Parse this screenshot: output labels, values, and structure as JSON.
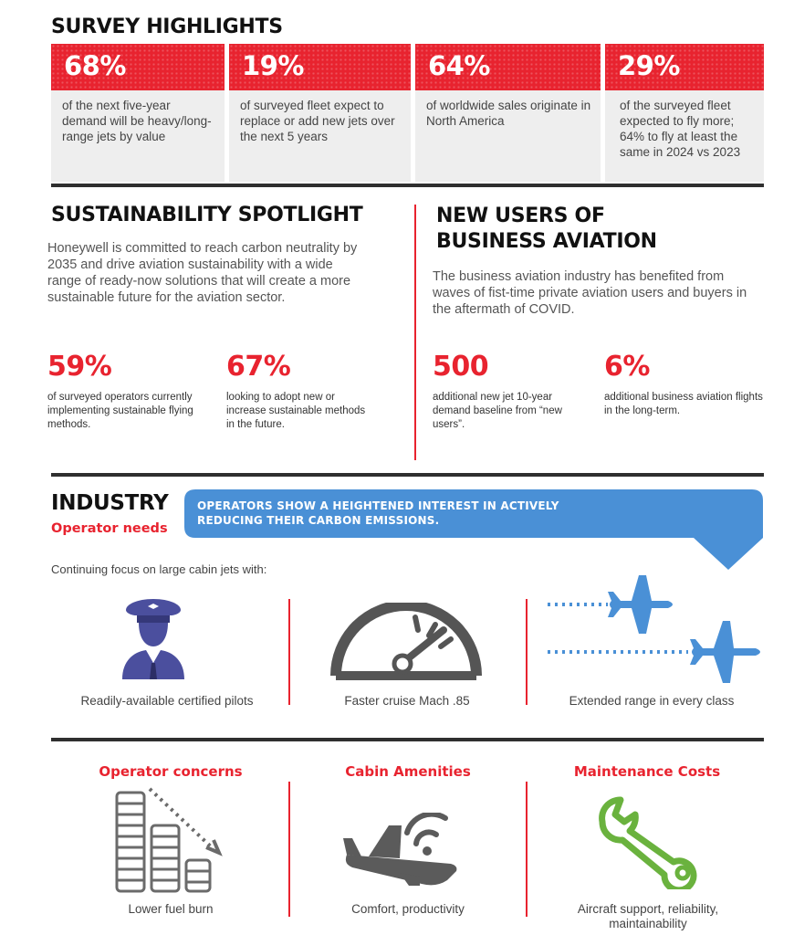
{
  "survey": {
    "title": "SURVEY HIGHLIGHTS",
    "stats": [
      {
        "value": "68%",
        "desc": "of the next five-year demand will be heavy/long-range jets by value"
      },
      {
        "value": "19%",
        "desc": "of surveyed fleet expect to replace or add new jets over the next 5 years"
      },
      {
        "value": "64%",
        "desc": "of worldwide sales originate in North America"
      },
      {
        "value": "29%",
        "desc": "of the surveyed fleet expected to fly more; 64% to fly at least the same in 2024 vs 2023"
      }
    ]
  },
  "sustainability": {
    "title": "SUSTAINABILITY SPOTLIGHT",
    "paragraph": "Honeywell is committed to reach carbon neutrality by 2035 and drive aviation sustainability with a wide range of ready-now solutions that will create a more sustainable future for the aviation sector.",
    "stats": [
      {
        "value": "59%",
        "desc": "of surveyed operators currently implementing sustainable flying methods."
      },
      {
        "value": "67%",
        "desc": "looking to adopt new or increase sustainable methods in the future."
      }
    ]
  },
  "new_users": {
    "title_line1": "NEW USERS OF",
    "title_line2": "BUSINESS AVIATION",
    "paragraph": "The business aviation industry has benefited from waves of fist-time private aviation users and buyers in the aftermath of COVID.",
    "stats": [
      {
        "value": "500",
        "desc": "additional new jet 10-year demand baseline from “new users”."
      },
      {
        "value": "6%",
        "desc": "additional business aviation flights in the long-term."
      }
    ]
  },
  "industry": {
    "title": "INDUSTRY",
    "subtitle": "Operator needs",
    "banner": "OPERATORS SHOW A HEIGHTENED INTEREST IN ACTIVELY REDUCING THEIR CARBON EMISSIONS.",
    "intro": "Continuing focus on large cabin jets with:",
    "items": [
      {
        "icon": "pilot-icon",
        "caption": "Readily-available certified pilots"
      },
      {
        "icon": "speedometer-icon",
        "caption": "Faster cruise Mach .85"
      },
      {
        "icon": "airplanes-icon",
        "caption": "Extended range in every class"
      }
    ]
  },
  "concerns": [
    {
      "heading": "Operator concerns",
      "icon": "fuel-coins-icon",
      "caption": "Lower fuel burn"
    },
    {
      "heading": "Cabin Amenities",
      "icon": "wifi-plane-icon",
      "caption": "Comfort, productivity"
    },
    {
      "heading": "Maintenance Costs",
      "icon": "wrench-icon",
      "caption": "Aircraft support, reliability, maintainability"
    }
  ],
  "colors": {
    "accent_red": "#e8232f",
    "accent_blue": "#4a90d6",
    "dark": "#2f2f2f",
    "navy": "#4b4f9e",
    "green": "#6ab23e"
  }
}
